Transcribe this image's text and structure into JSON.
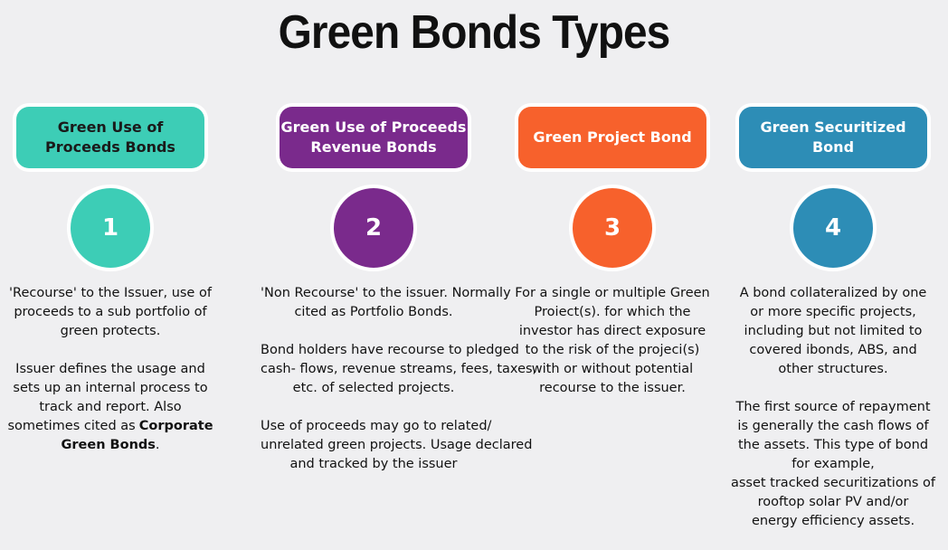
{
  "title": "Green Bonds Types",
  "columns": [
    {
      "label": [
        "Green Use of",
        "Proceeds Bonds"
      ],
      "number": "1",
      "color": "#3dcdb6",
      "text_color": "#1a1a1a",
      "paragraphs": [
        [
          "'Recourse' to the Issuer, use of",
          "proceeds to a sub portfolio of",
          "green protects."
        ],
        [
          "Issuer defines the usage and",
          "sets up an internal process to",
          "track and report. Also",
          [
            {
              "text": "sometimes cited as"
            },
            {
              "text": "Corporate",
              "bold": true
            }
          ],
          [
            {
              "text": "Green Bonds",
              "bold": true
            },
            {
              "text": "."
            }
          ]
        ]
      ]
    },
    {
      "label": [
        "Green Use of Proceeds",
        "Revenue Bonds"
      ],
      "number": "2",
      "color": "#7a2a8c",
      "text_color": "#ffffff",
      "paragraphs": [
        [
          "'Non Recourse' to the issuer. Normally",
          "cited as Portfolio Bonds."
        ],
        [
          "Bond holders have recourse to pledged",
          "cash- flows, revenue streams, fees, taxes,",
          "etc. of selected projects."
        ],
        [
          "Use of proceeds may go to related/",
          "unrelated green projects. Usage declared",
          "and tracked by the issuer"
        ]
      ]
    },
    {
      "label": [
        "Green Project Bond"
      ],
      "number": "3",
      "color": "#f7612c",
      "text_color": "#ffffff",
      "paragraphs": [
        [
          "For a single or multiple Green",
          "Proiect(s). for which the",
          "investor has direct exposure",
          "to the risk of the projeci(s)",
          "with or without potential",
          "recourse to the issuer."
        ]
      ]
    },
    {
      "label": [
        "Green Securitized",
        "Bond"
      ],
      "number": "4",
      "color": "#2d8db6",
      "text_color": "#ffffff",
      "paragraphs": [
        [
          "A bond collateralized by one",
          "or more specific projects,",
          "including but not limited to",
          "covered ibonds, ABS, and",
          "other structures."
        ],
        [
          "The first source of repayment",
          "is generally the cash flows of",
          "the assets. This type of bond",
          "for example,",
          "asset tracked securitizations of",
          "rooftop solar PV and/or",
          "energy efficiency assets."
        ]
      ]
    }
  ]
}
